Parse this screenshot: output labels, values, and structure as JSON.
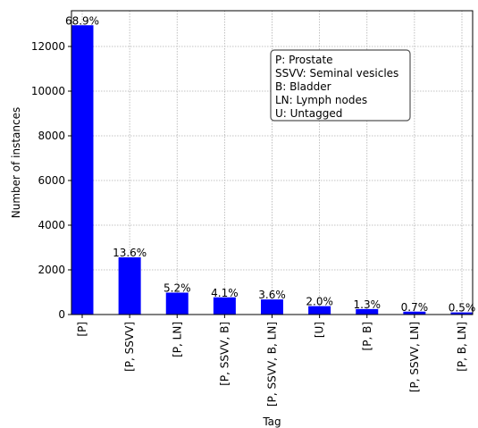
{
  "chart_data": {
    "type": "bar",
    "title": "",
    "xlabel": "Tag",
    "ylabel": "Number of instances",
    "ylim": [
      0,
      13600
    ],
    "yticks": [
      0,
      2000,
      4000,
      6000,
      8000,
      10000,
      12000
    ],
    "grid": true,
    "bar_color": "#0000ff",
    "categories": [
      "[P]",
      "[P, SSVV]",
      "[P, LN]",
      "[P, SSVV, B]",
      "[P, SSVV, B, LN]",
      "[U]",
      "[P, B]",
      "[P, SSVV, LN]",
      "[P, B, LN]"
    ],
    "values": [
      12950,
      2560,
      980,
      770,
      675,
      375,
      245,
      130,
      95
    ],
    "data_labels": [
      "68.9%",
      "13.6%",
      "5.2%",
      "4.1%",
      "3.6%",
      "2.0%",
      "1.3%",
      "0.7%",
      "0.5%"
    ],
    "legend": {
      "placement": "upper-center-right",
      "entries": [
        "P: Prostate",
        "SSVV: Seminal vesicles",
        "B: Bladder",
        "LN: Lymph nodes",
        "U: Untagged"
      ]
    }
  }
}
